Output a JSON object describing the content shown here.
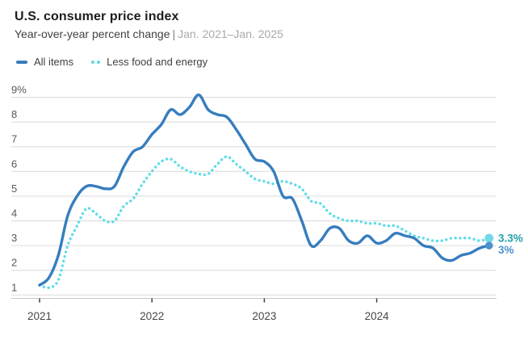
{
  "header": {
    "title": "U.S. consumer price index",
    "subtitle_measure": "Year-over-year percent change",
    "subtitle_separator": "|",
    "subtitle_range": "Jan. 2021–Jan. 2025"
  },
  "legend": [
    {
      "label": "All items",
      "color": "#377dbf",
      "style": "solid"
    },
    {
      "label": "Less food and energy",
      "color": "#5fdce8",
      "style": "dotted"
    }
  ],
  "colors": {
    "gridline": "#dadada",
    "axis_line": "#c8c8c8",
    "axis_tick": "#3f3f3f",
    "y_label": "#585858",
    "x_label": "#474747"
  },
  "chart_data": {
    "type": "line",
    "title": "U.S. consumer price index",
    "subtitle": "Year-over-year percent change | Jan. 2021–Jan. 2025",
    "x_start": "Jan 2021",
    "x_end": "Jan 2025",
    "frequency": "monthly",
    "ylim": [
      1,
      9
    ],
    "grid": true,
    "legend_position": "top-left",
    "x_ticks": [
      "2021",
      "2022",
      "2023",
      "2024"
    ],
    "y_ticks": [
      {
        "value": 9,
        "label": "9%"
      },
      {
        "value": 8,
        "label": "8"
      },
      {
        "value": 7,
        "label": "7"
      },
      {
        "value": 6,
        "label": "6"
      },
      {
        "value": 5,
        "label": "5"
      },
      {
        "value": 4,
        "label": "4"
      },
      {
        "value": 3,
        "label": "3"
      },
      {
        "value": 2,
        "label": "2"
      },
      {
        "value": 1,
        "label": "1"
      }
    ],
    "series": [
      {
        "id": "all-items",
        "name": "All items",
        "style": "solid",
        "color": "#377dbf",
        "end_dot_color": "#4c92d0",
        "end_label": "3%",
        "end_label_color": "#4c92d0",
        "values": [
          1.4,
          1.7,
          2.6,
          4.2,
          5.0,
          5.4,
          5.4,
          5.3,
          5.4,
          6.2,
          6.8,
          7.0,
          7.5,
          7.9,
          8.5,
          8.3,
          8.6,
          9.1,
          8.5,
          8.3,
          8.2,
          7.7,
          7.1,
          6.5,
          6.4,
          6.0,
          5.0,
          4.9,
          4.0,
          3.0,
          3.2,
          3.7,
          3.7,
          3.2,
          3.1,
          3.4,
          3.1,
          3.2,
          3.5,
          3.4,
          3.3,
          3.0,
          2.9,
          2.5,
          2.4,
          2.6,
          2.7,
          2.9,
          3.0
        ]
      },
      {
        "id": "less-food-and-energy",
        "name": "Less food and energy",
        "style": "dotted",
        "color": "#5fdce8",
        "end_dot_color": "#72d9e8",
        "end_label": "3.3%",
        "end_label_color": "#26a0ac",
        "values": [
          1.4,
          1.3,
          1.6,
          3.0,
          3.8,
          4.5,
          4.3,
          4.0,
          4.0,
          4.6,
          4.9,
          5.5,
          6.0,
          6.4,
          6.5,
          6.2,
          6.0,
          5.9,
          5.9,
          6.3,
          6.6,
          6.3,
          6.0,
          5.7,
          5.6,
          5.5,
          5.6,
          5.5,
          5.3,
          4.8,
          4.7,
          4.3,
          4.1,
          4.0,
          4.0,
          3.9,
          3.9,
          3.8,
          3.8,
          3.6,
          3.4,
          3.3,
          3.2,
          3.2,
          3.3,
          3.3,
          3.3,
          3.2,
          3.3
        ]
      }
    ]
  }
}
